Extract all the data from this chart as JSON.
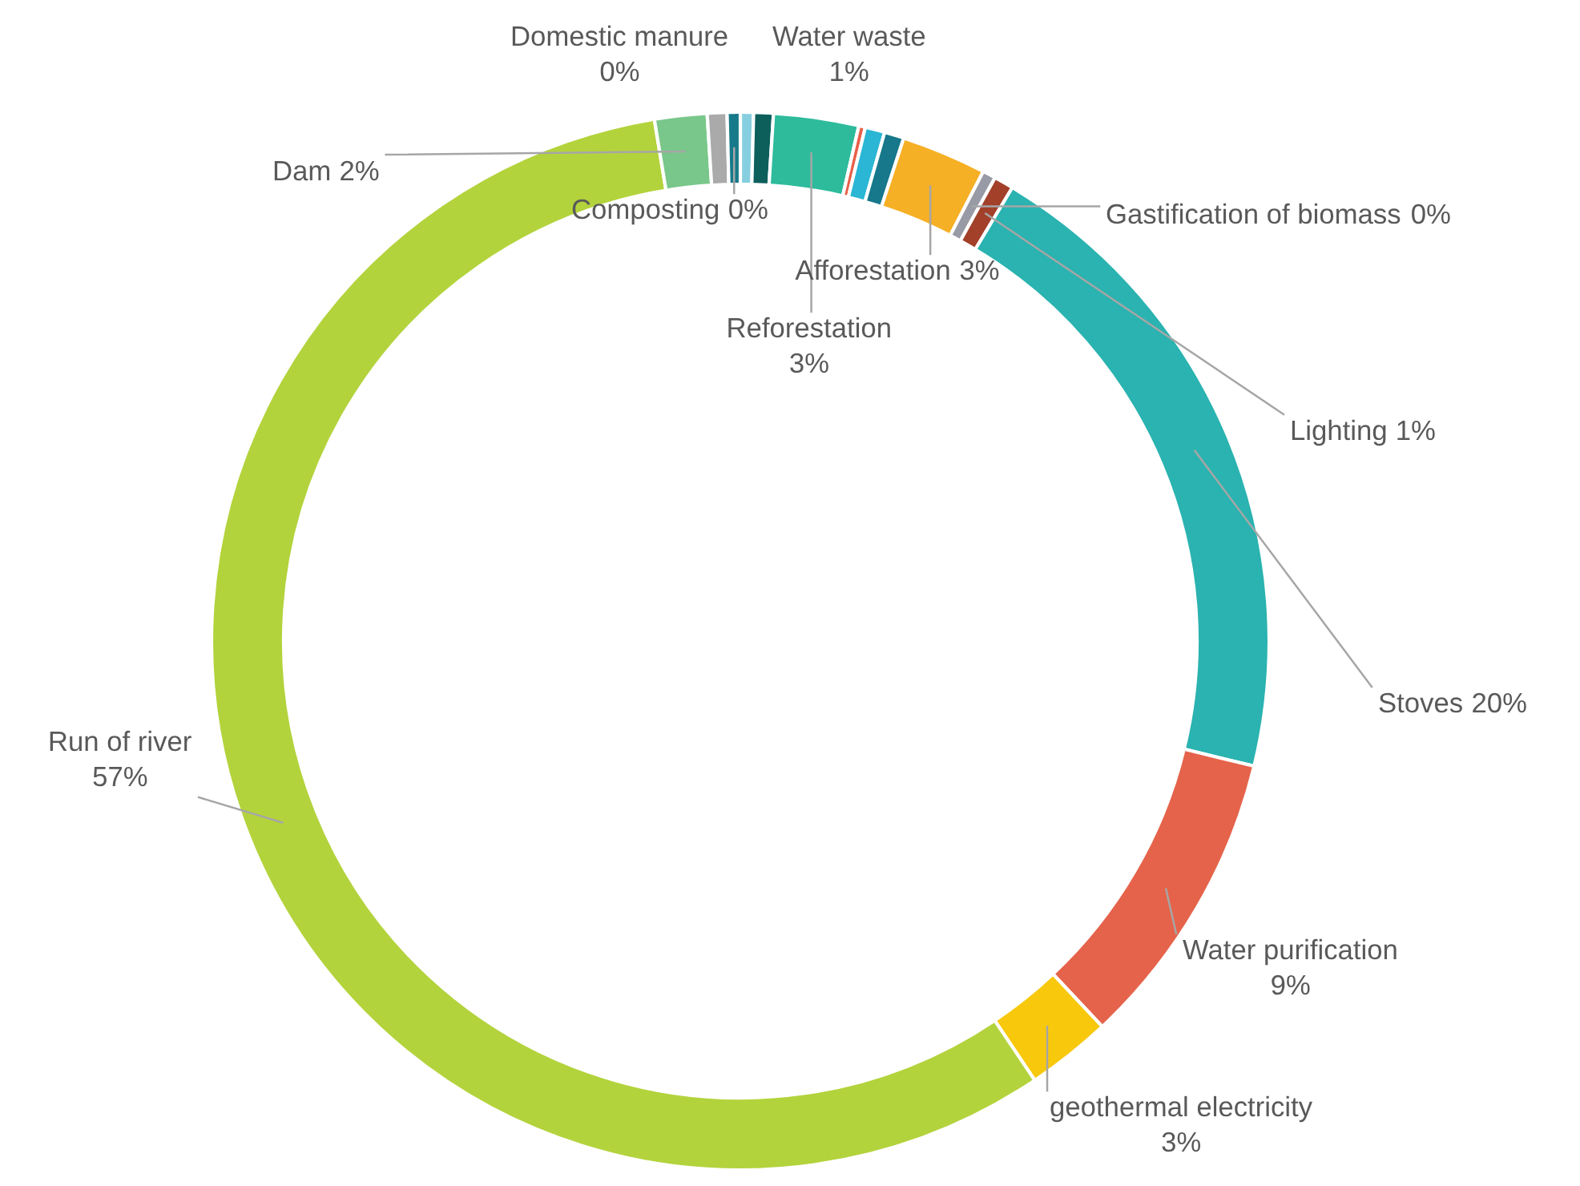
{
  "chart_data": {
    "type": "donut",
    "categories": [
      "Domestic manure",
      "Water waste",
      "Reforestation",
      null,
      null,
      null,
      "Afforestation",
      "Gastification of biomass",
      "Lighting",
      "Stoves",
      "Water purification",
      "geothermal electricity",
      "Run of river",
      "Dam",
      null,
      "Composting"
    ],
    "values": [
      0.4,
      0.6,
      2.6,
      0.2,
      0.6,
      0.6,
      2.6,
      0.4,
      0.6,
      20.2,
      9.2,
      2.6,
      56.8,
      1.6,
      0.6,
      0.4
    ],
    "value_labels": [
      "0%",
      "1%",
      "3%",
      null,
      null,
      null,
      "3%",
      "0%",
      "1%",
      "20%",
      "9%",
      "3%",
      "57%",
      "2%",
      null,
      "0%"
    ],
    "colors": [
      "#86cfe0",
      "#0d5f5c",
      "#2dbb9c",
      "#e8604a",
      "#2ab6d4",
      "#16788a",
      "#f6b025",
      "#989aa6",
      "#a2402a",
      "#2ab3b0",
      "#e5634a",
      "#f8c80d",
      "#b3d33c",
      "#79c78a",
      "#aaaaaa",
      "#177a8a"
    ]
  }
}
